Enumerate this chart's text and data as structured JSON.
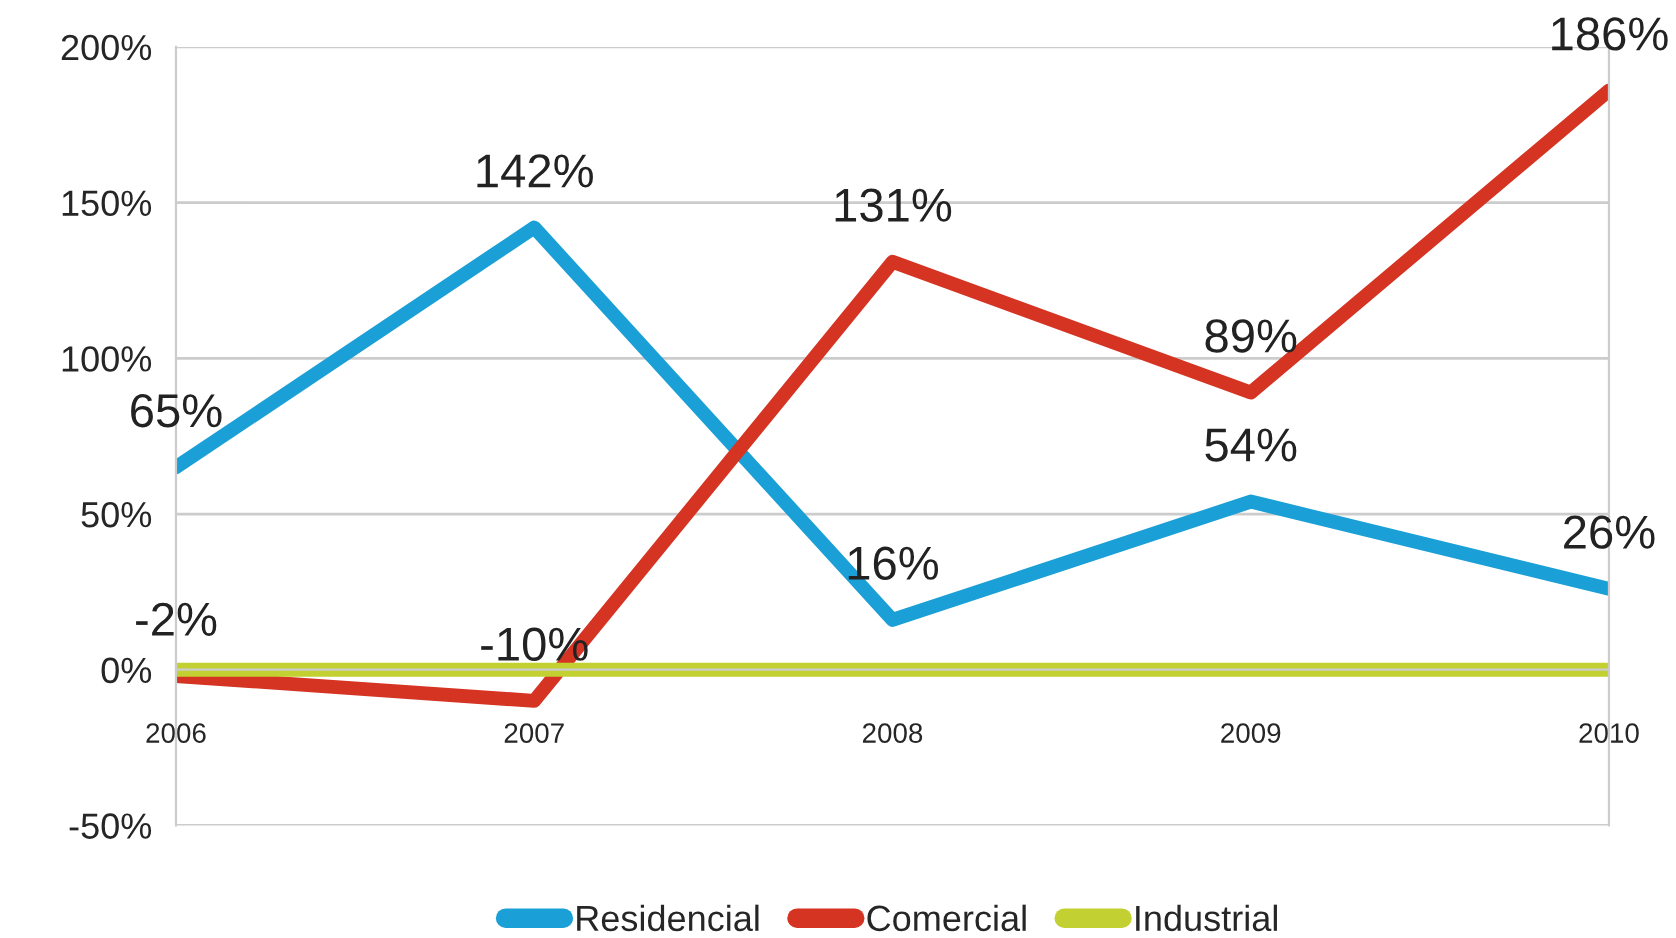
{
  "chart_data": {
    "type": "line",
    "categories": [
      "2006",
      "2007",
      "2008",
      "2009",
      "2010"
    ],
    "series": [
      {
        "name": "Residencial",
        "color": "#1a9fd6",
        "values": [
          65,
          142,
          16,
          54,
          26
        ],
        "value_labels": [
          "65%",
          "142%",
          "16%",
          "54%",
          "26%"
        ]
      },
      {
        "name": "Comercial",
        "color": "#d63423",
        "values": [
          -2,
          -10,
          131,
          89,
          186
        ],
        "value_labels": [
          "-2%",
          "-10%",
          "131%",
          "89%",
          "186%"
        ]
      },
      {
        "name": "Industrial",
        "color": "#c2d131",
        "values": [
          0,
          0,
          0,
          0,
          0
        ]
      }
    ],
    "ylim": [
      -50,
      200
    ],
    "yticks": [
      {
        "value": -50,
        "label": "-50%"
      },
      {
        "value": 0,
        "label": "0%"
      },
      {
        "value": 50,
        "label": "50%"
      },
      {
        "value": 100,
        "label": "100%"
      },
      {
        "value": 150,
        "label": "150%"
      },
      {
        "value": 200,
        "label": "200%"
      }
    ],
    "grid": "y",
    "legend": "bottom",
    "marker": "none",
    "line_style": "solid"
  }
}
